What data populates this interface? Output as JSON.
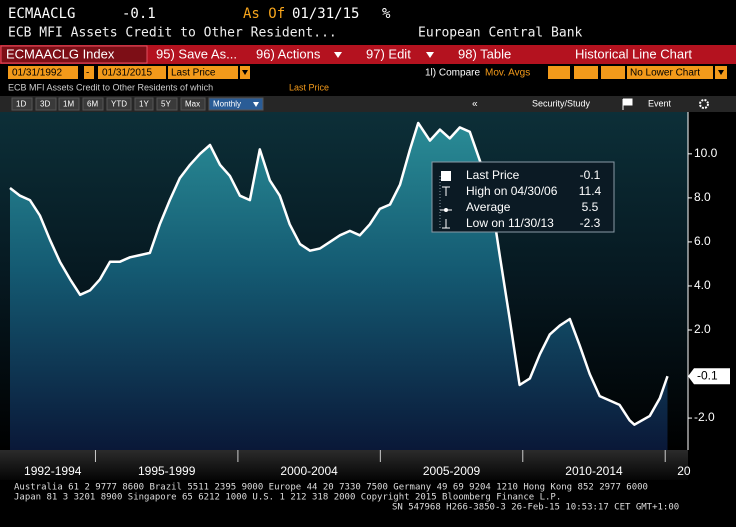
{
  "header": {
    "ticker": "ECMAACLG",
    "as_of_label": "As Of",
    "as_of_date": "01/31/15",
    "unit": "%",
    "description": "ECB MFI Assets Credit to Other Resident...",
    "source": "European Central Bank"
  },
  "toolbar": {
    "security": "ECMAACLG Index",
    "buttons": [
      "95) Save As...",
      "96) Actions",
      "97) Edit",
      "98) Table"
    ],
    "view": "Historical Line Chart"
  },
  "controls": {
    "start": "01/31/1992",
    "separator": "-",
    "end": "01/31/2015",
    "field": "Last Price",
    "compare": "1l) Compare",
    "mov_avgs": "Mov. Avgs",
    "lower": "No Lower Chart"
  },
  "chart_header": {
    "series_title": "ECB MFI Assets Credit to Other Residents of which",
    "field": "Last Price"
  },
  "range_buttons": [
    "1D",
    "3D",
    "1M",
    "6M",
    "YTD",
    "1Y",
    "5Y",
    "Max",
    "Monthly"
  ],
  "right_tools": {
    "collapse": "«",
    "security_study": "Security/Study",
    "event": "Event"
  },
  "footer": [
    "Australia 61 2 9777 8600 Brazil 5511 2395 9000 Europe 44 20 7330 7500 Germany 49 69 9204 1210 Hong Kong 852 2977 6000",
    "Japan 81 3 3201 8900        Singapore 65 6212 1000        U.S. 1 212 318 2000        Copyright 2015 Bloomberg Finance L.P.",
    "SN 547968 H266-3850-3 26-Feb-15 10:53:17 CET  GMT+1:00"
  ],
  "chart_data": {
    "type": "line",
    "x": [
      1992.0,
      1992.35,
      1992.7,
      1993.05,
      1993.4,
      1993.75,
      1994.11,
      1994.46,
      1994.81,
      1995.16,
      1995.51,
      1995.86,
      1996.21,
      1996.56,
      1996.91,
      1997.26,
      1997.61,
      1997.96,
      1998.32,
      1998.67,
      1999.02,
      1999.37,
      1999.72,
      2000.07,
      2000.42,
      2000.77,
      2001.12,
      2001.47,
      2001.82,
      2002.18,
      2002.53,
      2002.88,
      2003.23,
      2003.58,
      2003.93,
      2004.28,
      2004.63,
      2004.98,
      2005.34,
      2005.69,
      2006.04,
      2006.33,
      2006.74,
      2007.09,
      2007.44,
      2007.79,
      2008.14,
      2008.49,
      2008.84,
      2009.19,
      2009.54,
      2009.89,
      2010.25,
      2010.6,
      2010.95,
      2011.3,
      2011.65,
      2012.0,
      2012.35,
      2012.7,
      2013.05,
      2013.4,
      2013.75,
      2013.92,
      2014.46,
      2014.81,
      2015.08
    ],
    "series": [
      {
        "name": "Last Price",
        "color": "#ffffff",
        "values": [
          8.45,
          8.1,
          7.9,
          7.2,
          6.1,
          5.1,
          4.3,
          3.6,
          3.8,
          4.3,
          5.1,
          5.1,
          5.3,
          5.4,
          5.5,
          6.8,
          7.9,
          8.9,
          9.5,
          10.0,
          10.4,
          9.5,
          9.0,
          8.1,
          7.9,
          10.2,
          8.8,
          8.1,
          6.8,
          5.9,
          5.6,
          5.7,
          6.0,
          6.3,
          6.5,
          6.3,
          6.8,
          7.5,
          7.7,
          8.6,
          10.2,
          11.4,
          10.6,
          11.1,
          10.7,
          11.2,
          11.0,
          9.7,
          8.4,
          5.4,
          2.5,
          -0.5,
          -0.2,
          0.9,
          1.8,
          2.2,
          2.5,
          1.3,
          0.0,
          -1.0,
          -1.2,
          -1.4,
          -2.1,
          -2.3,
          -1.9,
          -1.1,
          -0.1
        ]
      }
    ],
    "xlim": [
      1992,
      2015.8
    ],
    "xticks": [
      {
        "value": 1992,
        "label": "1992-1994"
      },
      {
        "value": 1995,
        "label": "1995-1999"
      },
      {
        "value": 2000,
        "label": "2000-2004"
      },
      {
        "value": 2005,
        "label": "2005-2009"
      },
      {
        "value": 2010,
        "label": "2010-2014"
      },
      {
        "value": 2015,
        "label": "20"
      }
    ],
    "ylim": [
      -3.45,
      11.9
    ],
    "yticks": [
      {
        "value": 10,
        "label": "10.0"
      },
      {
        "value": 8,
        "label": "8.0"
      },
      {
        "value": 6,
        "label": "6.0"
      },
      {
        "value": 4,
        "label": "4.0"
      },
      {
        "value": 2,
        "label": "2.0"
      },
      {
        "value": -2,
        "label": "-2.0"
      }
    ],
    "stats": [
      {
        "label": "Last Price",
        "value": -0.1
      },
      {
        "label": "High on 04/30/06",
        "value": 11.4
      },
      {
        "label": "Average",
        "value": 5.5
      },
      {
        "label": "Low on 11/30/13",
        "value": -2.3
      }
    ]
  }
}
